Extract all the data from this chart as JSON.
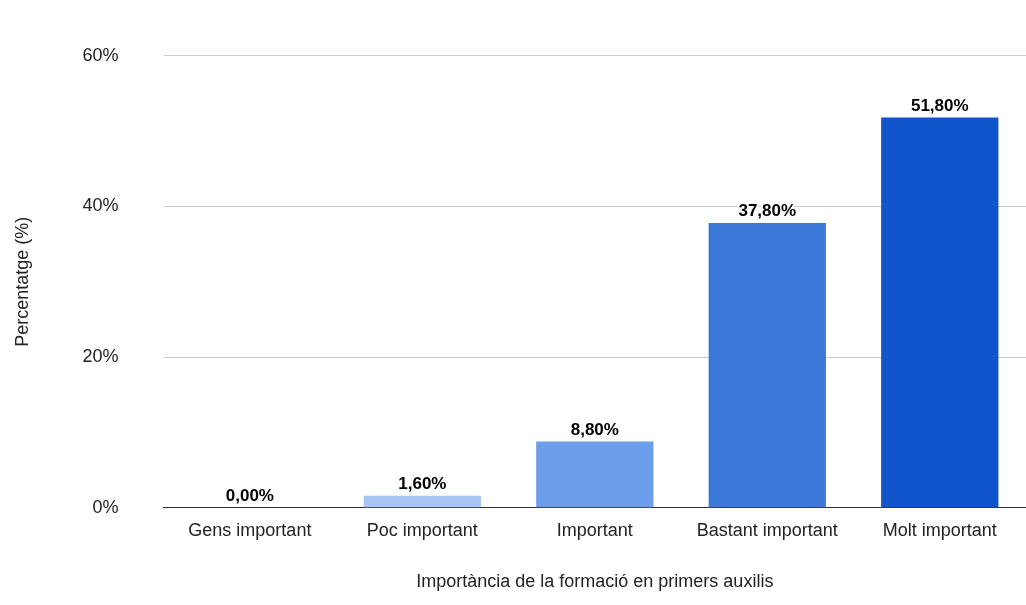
{
  "chart_data": {
    "type": "bar",
    "xlabel": "Importància de la formació en primers auxilis",
    "ylabel": "Percentatge (%)",
    "categories": [
      "Gens important",
      "Poc important",
      "Important",
      "Bastant important",
      "Molt important"
    ],
    "values": [
      0,
      1.6,
      8.8,
      37.8,
      51.8
    ],
    "colors": [
      "#d6e2fa",
      "#a7c4f5",
      "#6d9eeb",
      "#3c78d8",
      "#1155cc"
    ],
    "value_labels": [
      "0,00%",
      "1,60%",
      "8,80%",
      "37,80%",
      "51,80%"
    ],
    "ylim": [
      0,
      60
    ],
    "yticks": [
      {
        "value": 0,
        "label": "0%"
      },
      {
        "value": 20,
        "label": "20%"
      },
      {
        "value": 40,
        "label": "40%"
      },
      {
        "value": 60,
        "label": "60%"
      }
    ],
    "grid": "y",
    "legend": false
  }
}
